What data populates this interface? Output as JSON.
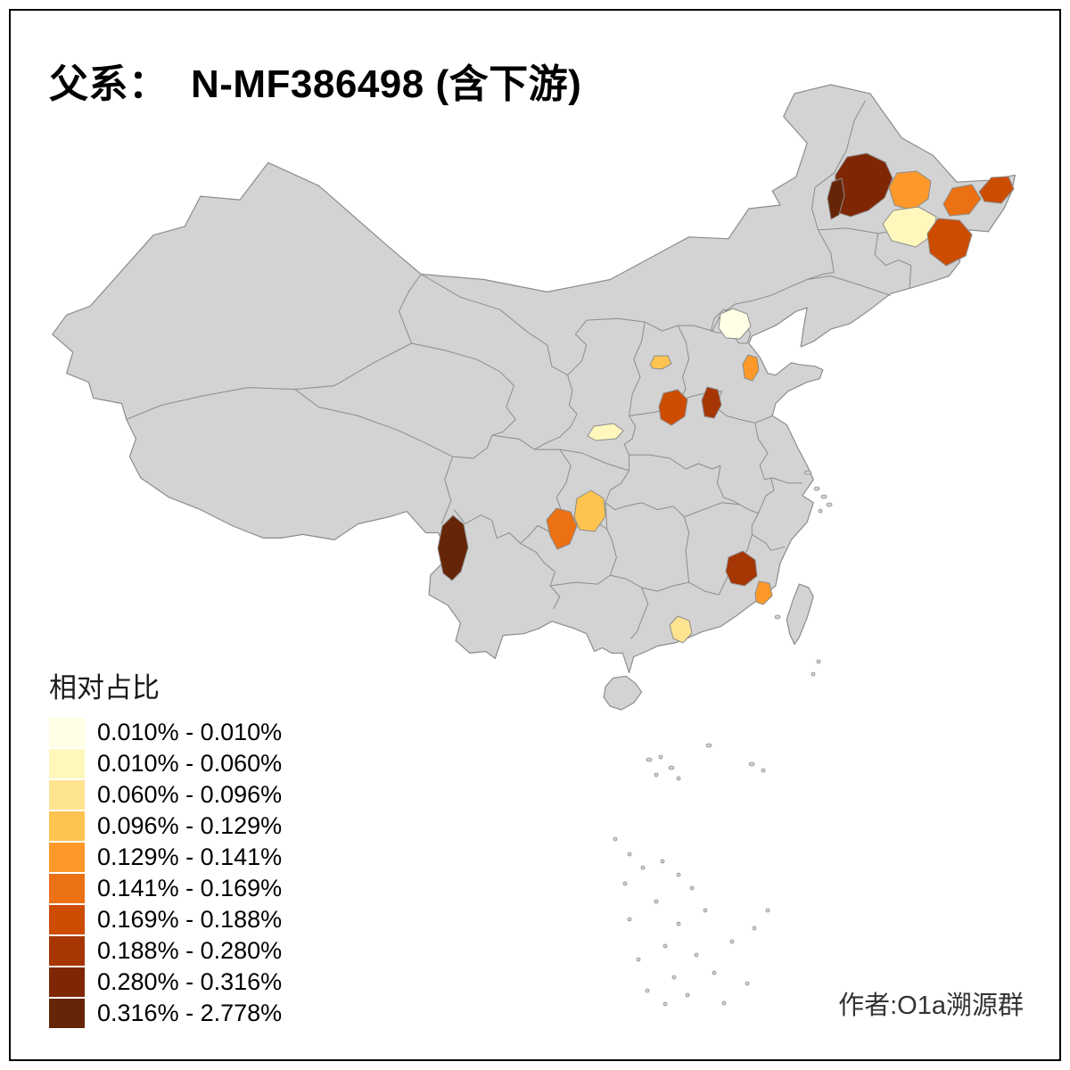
{
  "title": "父系：  N-MF386498 (含下游)",
  "legend": {
    "title": "相对占比",
    "items": [
      {
        "label": "0.010% - 0.010%",
        "color": "#FFFFE5"
      },
      {
        "label": "0.010% - 0.060%",
        "color": "#FFF7BC"
      },
      {
        "label": "0.060% - 0.096%",
        "color": "#FEE391"
      },
      {
        "label": "0.096% - 0.129%",
        "color": "#FEC44F"
      },
      {
        "label": "0.129% - 0.141%",
        "color": "#FE9929"
      },
      {
        "label": "0.141% - 0.169%",
        "color": "#EC7014"
      },
      {
        "label": "0.169% - 0.188%",
        "color": "#CC4C02"
      },
      {
        "label": "0.188% - 0.280%",
        "color": "#A63603"
      },
      {
        "label": "0.280% - 0.316%",
        "color": "#7F2704"
      },
      {
        "label": "0.316% - 2.778%",
        "color": "#662506"
      }
    ]
  },
  "attribution": "作者:O1a溯源群",
  "map": {
    "base_fill": "#D3D3D3",
    "border_color": "#8C8C8C",
    "background": "#FFFFFF",
    "regions": [
      {
        "id": "ne-1",
        "legend_class": 8
      },
      {
        "id": "ne-2",
        "legend_class": 9
      },
      {
        "id": "ne-3",
        "legend_class": 4
      },
      {
        "id": "ne-4",
        "legend_class": 1
      },
      {
        "id": "ne-5",
        "legend_class": 6
      },
      {
        "id": "ne-6",
        "legend_class": 5
      },
      {
        "id": "ne-7",
        "legend_class": 6
      },
      {
        "id": "north-1",
        "legend_class": 0
      },
      {
        "id": "north-2",
        "legend_class": 3
      },
      {
        "id": "north-3",
        "legend_class": 4
      },
      {
        "id": "central-1",
        "legend_class": 6
      },
      {
        "id": "central-2",
        "legend_class": 7
      },
      {
        "id": "central-3",
        "legend_class": 1
      },
      {
        "id": "southwest-2",
        "legend_class": 3
      },
      {
        "id": "southwest-1",
        "legend_class": 5
      },
      {
        "id": "yunnan-1",
        "legend_class": 9
      },
      {
        "id": "southeast-1",
        "legend_class": 7
      },
      {
        "id": "southeast-2",
        "legend_class": 4
      },
      {
        "id": "south-1",
        "legend_class": 2
      }
    ]
  }
}
